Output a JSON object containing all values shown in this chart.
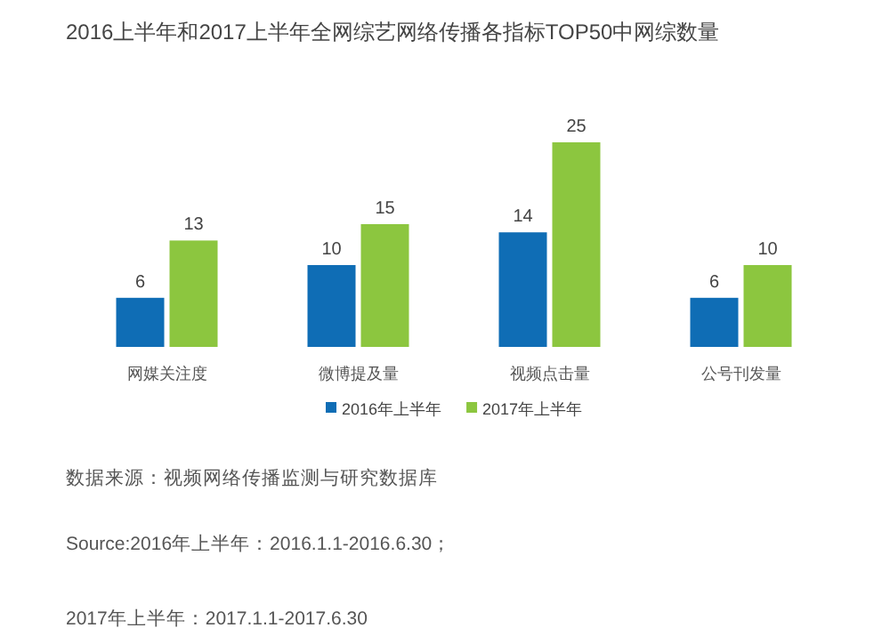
{
  "chart_data": {
    "type": "bar",
    "title": "2016上半年和2017上半年全网综艺网络传播各指标TOP50中网综数量",
    "categories": [
      "网媒关注度",
      "微博提及量",
      "视频点击量",
      "公号刊发量"
    ],
    "series": [
      {
        "name": "2016年上半年",
        "color": "#0f6db5",
        "values": [
          6,
          10,
          14,
          6
        ]
      },
      {
        "name": "2017年上半年",
        "color": "#8cc63f",
        "values": [
          13,
          15,
          25,
          10
        ]
      }
    ],
    "data_labels": true,
    "legend": "bottom",
    "annotations": [
      "数据来源：视频网络传播监测与研究数据库",
      "Source:2016年上半年：2016.1.1-2016.6.30；",
      "2017年上半年：2017.1.1-2017.6.30"
    ]
  }
}
